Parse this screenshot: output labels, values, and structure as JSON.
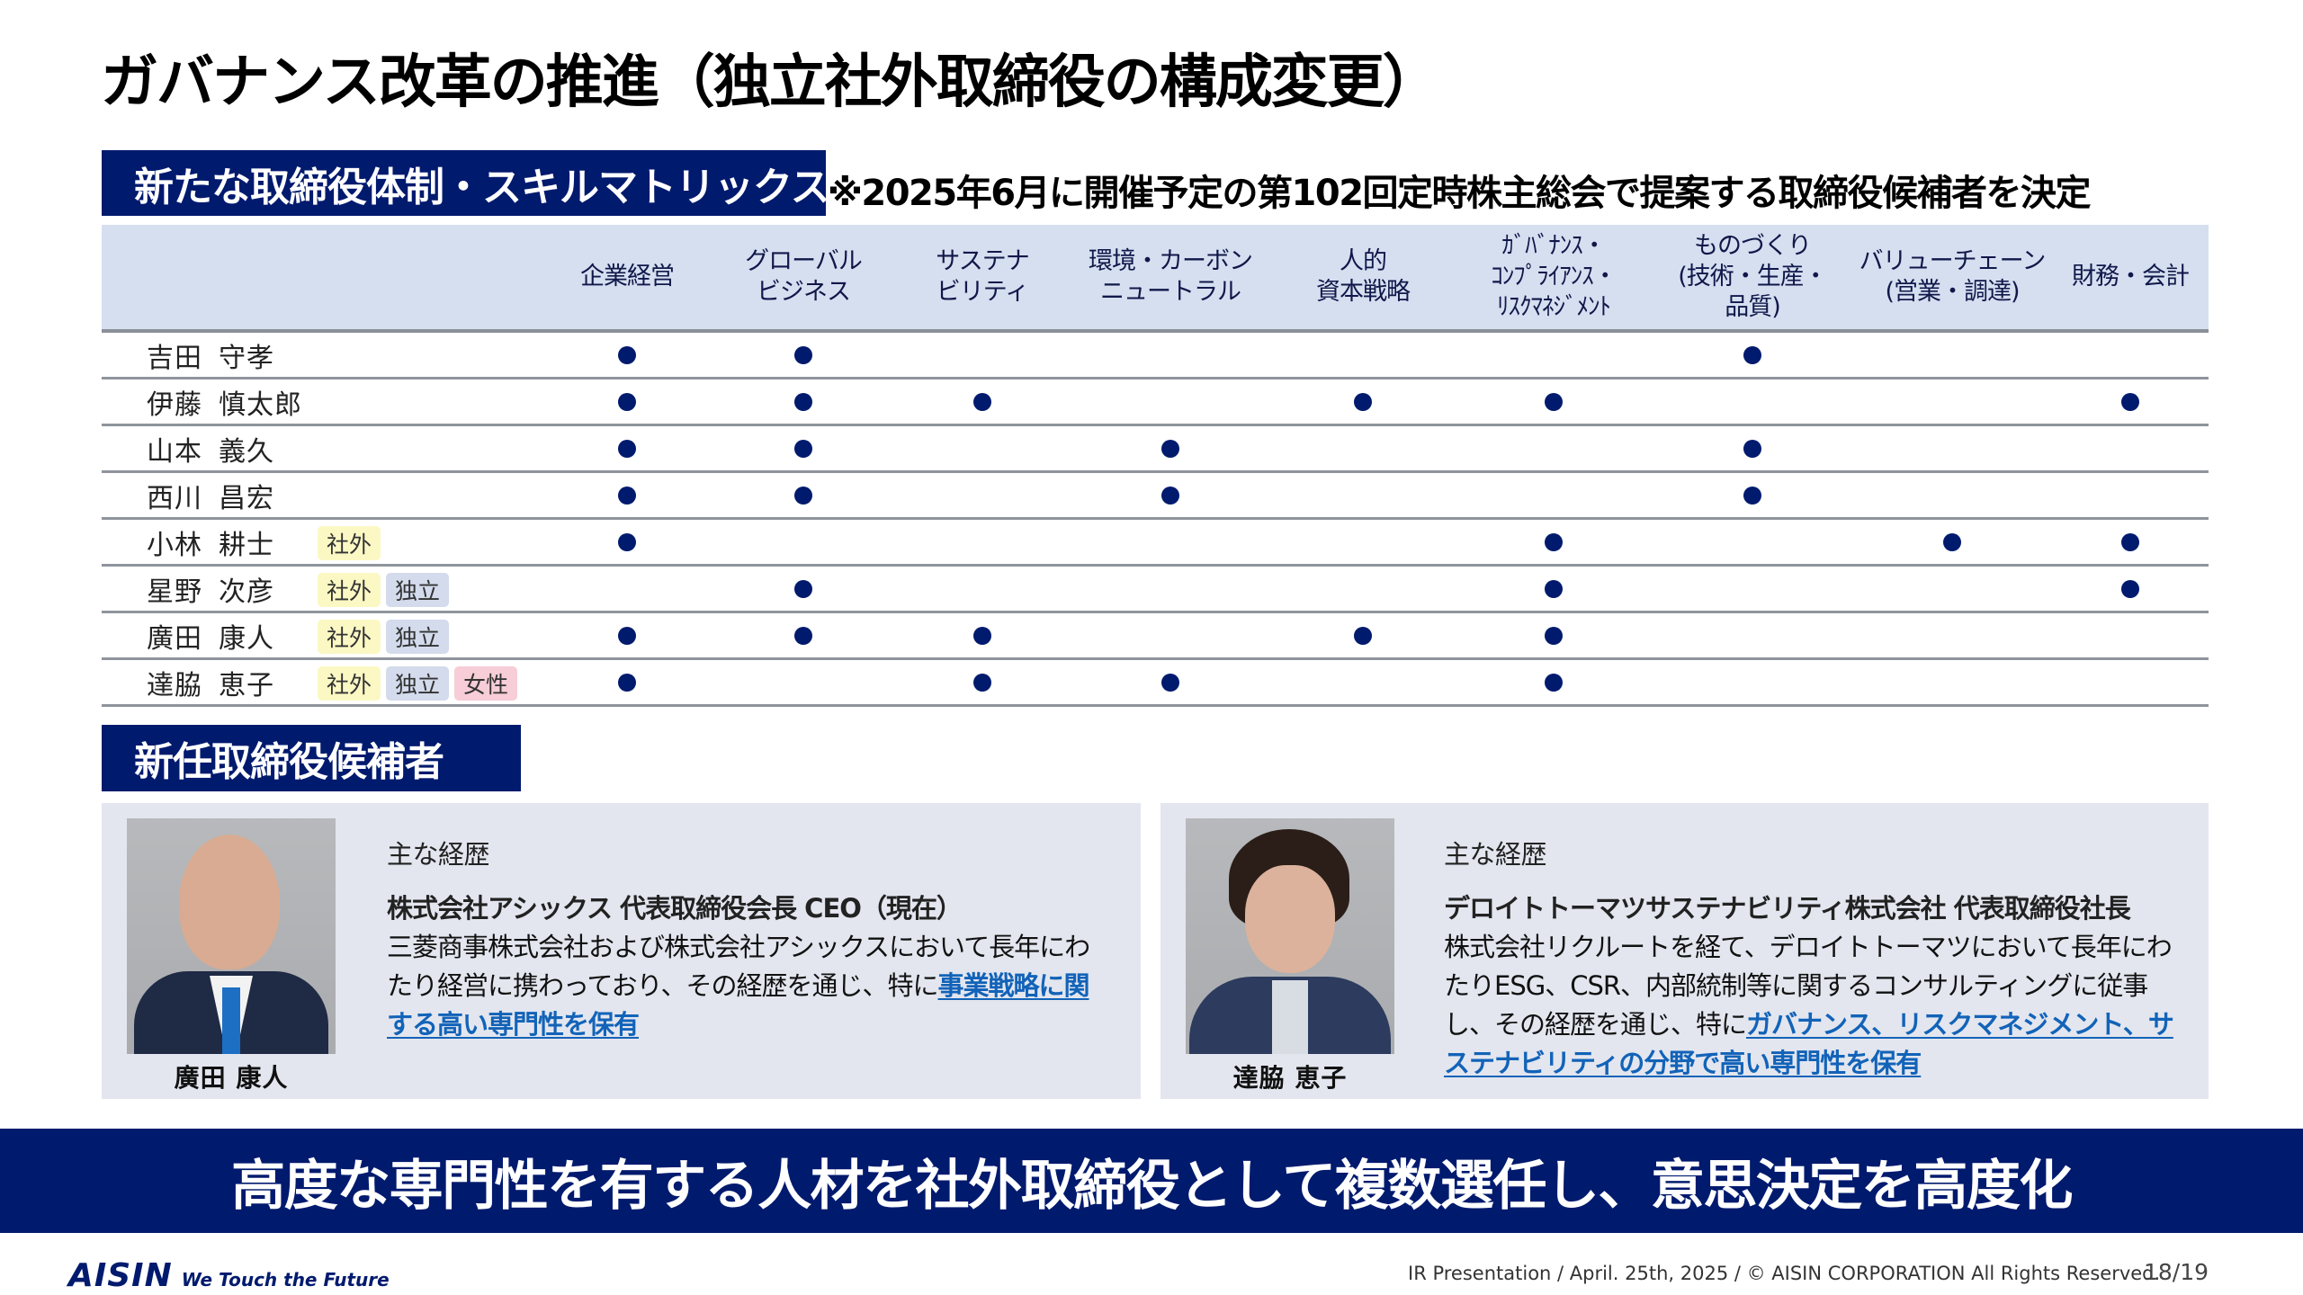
{
  "title": "ガバナンス改革の推進（独立社外取締役の構成変更）",
  "skills_section": {
    "heading": "新たな取締役体制・スキルマトリックス",
    "note": "※2025年6月に開催予定の第102回定時株主総会で提案する取締役候補者を決定"
  },
  "matrix": {
    "columns": [
      {
        "label": "企業経営"
      },
      {
        "label": "グローバル\nビジネス"
      },
      {
        "label": "サステナ\nビリティ"
      },
      {
        "label": "環境・カーボン\nニュートラル"
      },
      {
        "label": "人的\n資本戦略"
      },
      {
        "label": "ｶﾞﾊﾞﾅﾝｽ・\nｺﾝﾌﾟﾗｲｱﾝｽ・\nﾘｽｸﾏﾈｼﾞﾒﾝﾄ"
      },
      {
        "label": "ものづくり\n(技術・生産・\n品質)"
      },
      {
        "label": "バリューチェーン\n(営業・調達)"
      },
      {
        "label": "財務・会計"
      }
    ],
    "tag_labels": {
      "outside": "社外",
      "independent": "独立",
      "female": "女性"
    },
    "rows": [
      {
        "family": "吉田",
        "given": "守孝",
        "tags": [],
        "skills": [
          1,
          1,
          0,
          0,
          0,
          0,
          1,
          0,
          0
        ]
      },
      {
        "family": "伊藤",
        "given": "慎太郎",
        "tags": [],
        "skills": [
          1,
          1,
          1,
          0,
          1,
          1,
          0,
          0,
          1
        ]
      },
      {
        "family": "山本",
        "given": "義久",
        "tags": [],
        "skills": [
          1,
          1,
          0,
          1,
          0,
          0,
          1,
          0,
          0
        ]
      },
      {
        "family": "西川",
        "given": "昌宏",
        "tags": [],
        "skills": [
          1,
          1,
          0,
          1,
          0,
          0,
          1,
          0,
          0
        ]
      },
      {
        "family": "小林",
        "given": "耕士",
        "tags": [
          "outside"
        ],
        "skills": [
          1,
          0,
          0,
          0,
          0,
          1,
          0,
          1,
          1
        ]
      },
      {
        "family": "星野",
        "given": "次彦",
        "tags": [
          "outside",
          "independent"
        ],
        "skills": [
          0,
          1,
          0,
          0,
          0,
          1,
          0,
          0,
          1
        ]
      },
      {
        "family": "廣田",
        "given": "康人",
        "tags": [
          "outside",
          "independent"
        ],
        "skills": [
          1,
          1,
          1,
          0,
          1,
          1,
          0,
          0,
          0
        ]
      },
      {
        "family": "達脇",
        "given": "恵子",
        "tags": [
          "outside",
          "independent",
          "female"
        ],
        "skills": [
          1,
          0,
          1,
          1,
          0,
          1,
          0,
          0,
          0
        ]
      }
    ]
  },
  "candidates_section": {
    "heading": "新任取締役候補者",
    "candidates": [
      {
        "name": "廣田 康人",
        "career_label": "主な経歴",
        "career_title": "株式会社アシックス 代表取締役会長 CEO（現在）",
        "career_text": "三菱商事株式会社および株式会社アシックスにおいて長年にわたり経営に携わっており、その経歴を通じ、特に",
        "career_highlight": "事業戦略に関する高い専門性を保有"
      },
      {
        "name": "達脇 恵子",
        "career_label": "主な経歴",
        "career_title": "デロイトトーマツサステナビリティ株式会社 代表取締役社長",
        "career_text": "株式会社リクルートを経て、デロイトトーマツにおいて長年にわたりESG、CSR、内部統制等に関するコンサルティングに従事し、その経歴を通じ、特に",
        "career_highlight": "ガバナンス、リスクマネジメント、サステナビリティの分野で高い専門性を保有"
      }
    ]
  },
  "banner": {
    "text": "高度な専門性を有する人材を社外取締役として複数選任し、意思決定を高度化"
  },
  "footer": {
    "logo": "AISIN",
    "tagline": "We Touch the Future",
    "copyright": "IR Presentation / April. 25th, 2025 / © AISIN CORPORATION All Rights Reserved.",
    "page": "18/19"
  },
  "colors": {
    "navy": "#001a6e",
    "header_bg": "#d6dff0",
    "card_bg": "#e3e6ef",
    "highlight_link": "#1263b8",
    "tag_outside": "#fbf8c4",
    "tag_independent": "#d3dbec",
    "tag_female": "#f7cdd7"
  }
}
